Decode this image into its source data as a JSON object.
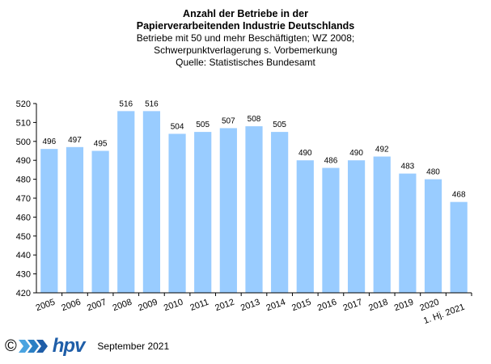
{
  "chart_data": {
    "type": "bar",
    "title": "Anzahl der Betriebe in der",
    "title_line2": "Papierverarbeitenden Industrie Deutschlands",
    "subtitle_lines": [
      "Betriebe  mit 50 und  mehr Beschäftigten;  WZ 2008;",
      "Schwerpunktverlagerung   s. Vorbemerkung",
      "Quelle:  Statistisches Bundesamt"
    ],
    "categories": [
      "2005",
      "2006",
      "2007",
      "2008",
      "2009",
      "2010",
      "2011",
      "2012",
      "2013",
      "2014",
      "2015",
      "2016",
      "2017",
      "2018",
      "2019",
      "2020",
      "1. Hj. 2021"
    ],
    "values": [
      496,
      497,
      495,
      516,
      516,
      504,
      505,
      507,
      508,
      505,
      490,
      486,
      490,
      492,
      483,
      480,
      468
    ],
    "ylim": [
      420,
      520
    ],
    "yticks": [
      420,
      430,
      440,
      450,
      460,
      470,
      480,
      490,
      500,
      510,
      520
    ],
    "bar_color": "#99ccff",
    "grid": false,
    "legend": "none",
    "xlabel": "",
    "ylabel": ""
  },
  "footer": {
    "copyright": "©",
    "logo_text": "hpv",
    "date": "September 2021"
  }
}
